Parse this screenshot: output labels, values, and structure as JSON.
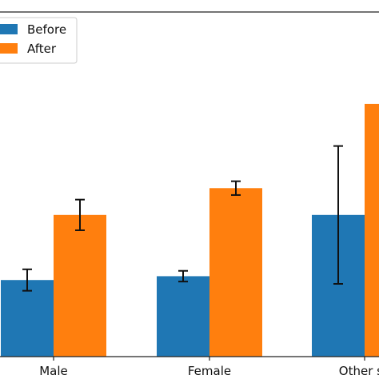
{
  "chart_data": {
    "type": "bar",
    "categories": [
      "Male",
      "Female",
      "Other se"
    ],
    "series": [
      {
        "name": "Before",
        "color": "#1f77b4",
        "values": [
          1.0,
          1.05,
          1.85
        ],
        "errors": [
          0.14,
          0.07,
          0.9
        ]
      },
      {
        "name": "After",
        "color": "#ff7f0e",
        "values": [
          1.85,
          2.2,
          3.3
        ],
        "errors": [
          0.2,
          0.09,
          0
        ]
      }
    ],
    "title": "",
    "xlabel": "",
    "ylabel": "",
    "ylim": [
      0,
      4.5
    ],
    "grid": false,
    "legend": "top-left"
  }
}
